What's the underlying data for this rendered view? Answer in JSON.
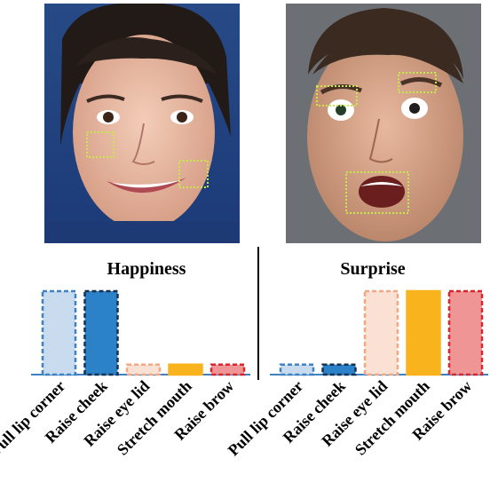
{
  "images": [
    {
      "name": "happiness-face-photo",
      "regions": [
        "cheek",
        "lip-corner"
      ]
    },
    {
      "name": "surprise-face-photo",
      "regions": [
        "eye-lid",
        "brow",
        "mouth"
      ]
    }
  ],
  "colors": {
    "pull_lip_corner": "#c9dcef",
    "pull_lip_corner_stroke": "#3f82c4",
    "raise_cheek": "#2c82c9",
    "raise_cheek_stroke": "#16314f",
    "raise_eye_lid": "#fbe1d4",
    "raise_eye_lid_stroke": "#f0a884",
    "stretch_mouth": "#f9b41d",
    "stretch_mouth_stroke": "#f9b41d",
    "raise_brow": "#f09595",
    "raise_brow_stroke": "#d9252b",
    "baseline": "#3f82c4",
    "region_box": "#c6e84a"
  },
  "chart_data": [
    {
      "type": "bar",
      "title": "Happiness",
      "categories": [
        "Pull lip corner",
        "Raise cheek",
        "Raise eye lid",
        "Stretch mouth",
        "Raise brow"
      ],
      "values": [
        1.0,
        1.0,
        0.12,
        0.12,
        0.12
      ],
      "ylim": [
        0,
        1.0
      ]
    },
    {
      "type": "bar",
      "title": "Surprise",
      "categories": [
        "Pull lip corner",
        "Raise cheek",
        "Raise eye lid",
        "Stretch mouth",
        "Raise brow"
      ],
      "values": [
        0.12,
        0.12,
        1.0,
        1.0,
        1.0
      ],
      "ylim": [
        0,
        1.0
      ]
    }
  ]
}
